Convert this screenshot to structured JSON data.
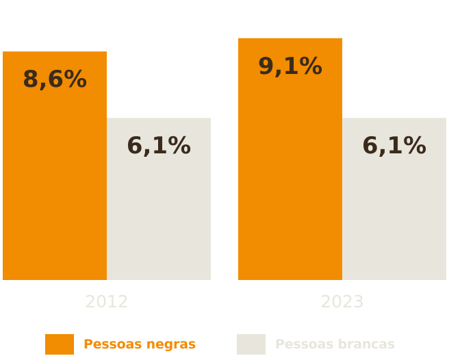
{
  "chart_data": {
    "type": "bar",
    "categories": [
      "2012",
      "2023"
    ],
    "series": [
      {
        "name": "Pessoas negras",
        "values": [
          8.6,
          9.1
        ],
        "labels": [
          "8,6%",
          "9,1%"
        ],
        "color": "#f28c00"
      },
      {
        "name": "Pessoas brancas",
        "values": [
          6.1,
          6.1
        ],
        "labels": [
          "6,1%",
          "6,1%"
        ],
        "color": "#e8e6dc"
      }
    ],
    "title": "",
    "xlabel": "",
    "ylabel": "",
    "ylim": [
      0,
      9.3
    ],
    "grid": false,
    "legend": "bottom",
    "colors": {
      "value_label": "#3a2b1c",
      "category_label": "#e8e6dc",
      "legend_negras_text": "#f28c00",
      "legend_brancas_text": "#e8e6dc"
    }
  }
}
